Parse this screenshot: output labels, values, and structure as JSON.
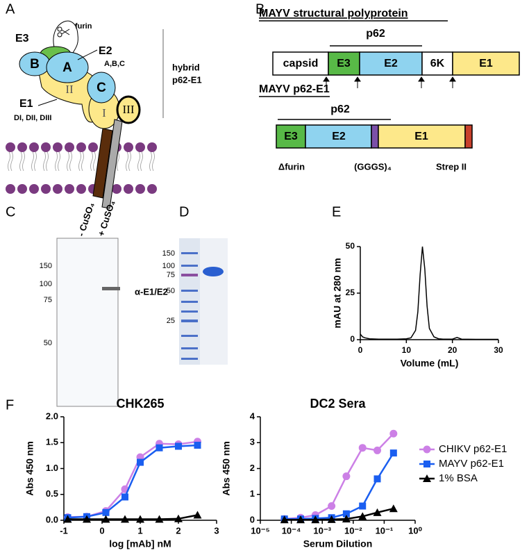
{
  "panel_labels": [
    "A",
    "B",
    "C",
    "D",
    "E",
    "F"
  ],
  "panel_a": {
    "furin": "furin",
    "e3": "E3",
    "e2": "E2",
    "e2_domains": "A,B,C",
    "domain_b": "B",
    "domain_a": "A",
    "domain_c": "C",
    "dii": "II",
    "di": "I",
    "diii": "III",
    "e1": "E1",
    "e1_domains": "DI, DII, DIII",
    "hybrid": [
      "hybrid",
      "p62-E1"
    ]
  },
  "panel_b": {
    "title1": "MAYV structural polyprotein",
    "p62_1": "p62",
    "segments1": [
      "capsid",
      "E3",
      "E2",
      "6K",
      "E1"
    ],
    "title2": "MAYV p62-E1",
    "p62_2": "p62",
    "segments2": [
      "E3",
      "E2",
      "E1"
    ],
    "notes2": [
      "Δfurin",
      "(GGGS)₄",
      "Strep II"
    ]
  },
  "panel_c": {
    "lanes": [
      "- CuSO₄",
      "+ CuSO₄"
    ],
    "markers": [
      "150",
      "100",
      "75",
      "50"
    ],
    "band_label": "α-E1/E2"
  },
  "panel_d": {
    "markers": [
      "150",
      "100",
      "75",
      "50",
      "25"
    ]
  },
  "chart_data": [
    {
      "type": "line",
      "xlabel": "Volume (mL)",
      "ylabel": "mAU at 280 nm",
      "x": [
        0,
        0.5,
        1,
        2,
        4,
        6,
        8,
        10,
        11,
        12,
        12.5,
        13,
        13.5,
        14,
        14.5,
        15,
        16,
        17,
        18,
        20,
        21,
        22,
        25,
        30
      ],
      "values": [
        3,
        1.5,
        1,
        0.5,
        0.3,
        0.3,
        0.3,
        0.5,
        1,
        5,
        15,
        35,
        50,
        38,
        18,
        6,
        1.5,
        0.5,
        0.3,
        0.3,
        1.2,
        0.3,
        0.2,
        0.2
      ],
      "color": "#000000",
      "xlim": [
        0,
        30
      ],
      "xticks": [
        0,
        10,
        20,
        30
      ],
      "ylim": [
        0,
        50
      ],
      "yticks": [
        0,
        25,
        50
      ]
    },
    {
      "type": "line",
      "title": "CHK265",
      "xlabel": "log [mAb] nM",
      "ylabel": "Abs 450 nm",
      "x": [
        -0.9,
        -0.4,
        0.1,
        0.6,
        1.0,
        1.5,
        2.0,
        2.5
      ],
      "series": [
        {
          "color": "#cc80e6",
          "marker": "circle",
          "values": [
            0.06,
            0.07,
            0.18,
            0.6,
            1.22,
            1.48,
            1.47,
            1.52
          ]
        },
        {
          "color": "#1a5ef0",
          "marker": "square",
          "values": [
            0.05,
            0.07,
            0.15,
            0.45,
            1.12,
            1.4,
            1.43,
            1.45
          ]
        },
        {
          "color": "#000000",
          "marker": "triangle",
          "values": [
            0.02,
            0.02,
            0.02,
            0.02,
            0.02,
            0.02,
            0.03,
            0.1
          ]
        }
      ],
      "xlim": [
        -1,
        3
      ],
      "xticks": [
        -1,
        0,
        1,
        2,
        3
      ],
      "ylim": [
        0,
        2
      ],
      "yticks": [
        {
          "value": 0,
          "label": "0.0"
        },
        0.5,
        {
          "value": 1,
          "label": "1.0"
        },
        1.5,
        {
          "value": 2,
          "label": "2.0"
        }
      ]
    },
    {
      "type": "line",
      "title": "DC2 Sera",
      "xlabel": "Serum Dilution",
      "ylabel": "Abs 450 nm",
      "xlog": true,
      "x": [
        6e-05,
        0.0002,
        0.0006,
        0.002,
        0.006,
        0.02,
        0.06,
        0.2
      ],
      "series": [
        {
          "name": "CHIKV p62-E1",
          "color": "#cc80e6",
          "marker": "circle",
          "values": [
            0.05,
            0.1,
            0.2,
            0.55,
            1.7,
            2.8,
            2.7,
            3.35
          ]
        },
        {
          "name": "MAYV p62-E1",
          "color": "#1a5ef0",
          "marker": "square",
          "values": [
            0.05,
            0.05,
            0.07,
            0.1,
            0.25,
            0.55,
            1.6,
            2.6
          ]
        },
        {
          "name": "1% BSA",
          "color": "#000000",
          "marker": "triangle",
          "values": [
            0.02,
            0.02,
            0.02,
            0.03,
            0.05,
            0.15,
            0.3,
            0.45
          ]
        }
      ],
      "xlim": [
        1e-05,
        1
      ],
      "xticks": [
        {
          "value": 1e-05,
          "label": "10⁻⁵"
        },
        {
          "value": 0.0001,
          "label": "10⁻⁴"
        },
        {
          "value": 0.001,
          "label": "10⁻³"
        },
        {
          "value": 0.01,
          "label": "10⁻²"
        },
        {
          "value": 0.1,
          "label": "10⁻¹"
        },
        {
          "value": 1,
          "label": "10⁰"
        }
      ],
      "ylim": [
        0,
        4
      ],
      "yticks": [
        0,
        1,
        2,
        3,
        4
      ]
    }
  ]
}
